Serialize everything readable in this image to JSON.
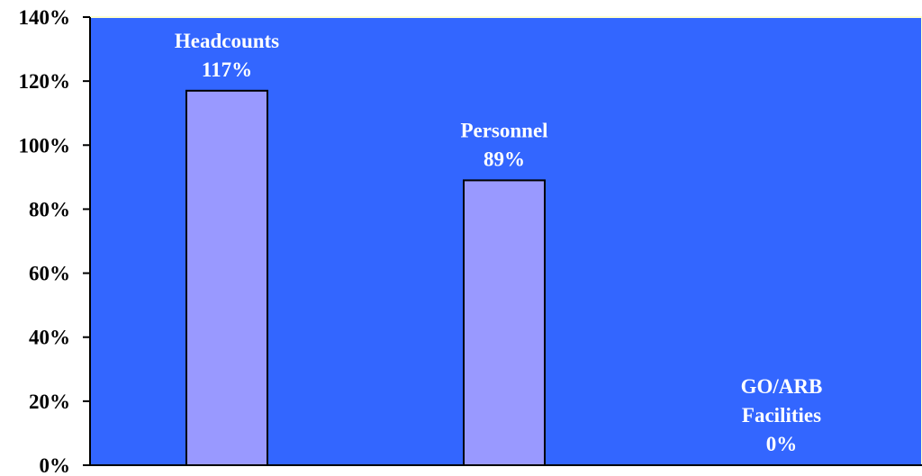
{
  "chart_data": {
    "type": "bar",
    "title": "",
    "xlabel": "",
    "ylabel": "",
    "categories": [
      "Headcounts",
      "Personnel",
      "GO/ARB Facilities"
    ],
    "values": [
      117,
      89,
      0
    ],
    "data_labels": [
      [
        "Headcounts",
        "117%"
      ],
      [
        "Personnel",
        "89%"
      ],
      [
        "GO/ARB",
        "Facilities",
        "0%"
      ]
    ],
    "y_ticks": [
      "0%",
      "20%",
      "40%",
      "60%",
      "80%",
      "100%",
      "120%",
      "140%"
    ],
    "ylim": [
      0,
      140
    ],
    "y_unit": "%",
    "grid": false,
    "legend": "none",
    "colors": {
      "plot_background": "#3366FF",
      "bar_fill": "#9999FF",
      "bar_stroke": "#000000",
      "data_label": "#FFFFFF",
      "tick_label": "#000000",
      "plot_border": "#FFFFCC"
    }
  }
}
